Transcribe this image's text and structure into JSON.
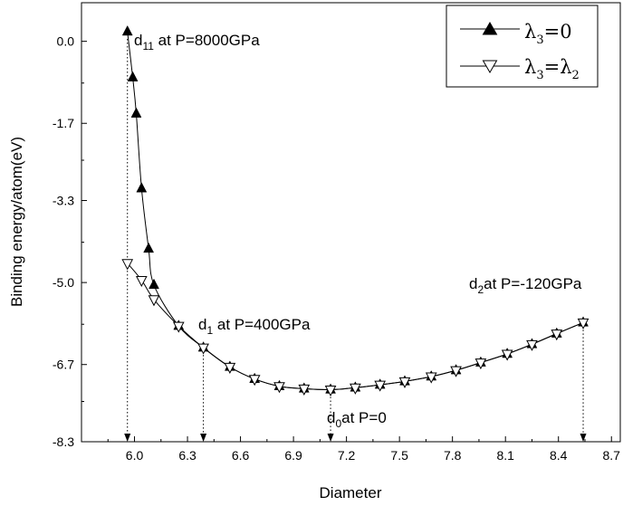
{
  "chart_data": {
    "type": "scatter",
    "xlabel": "Diameter",
    "ylabel": "Binding energy/atom(eV)",
    "xlim": [
      5.7,
      8.75
    ],
    "ylim": [
      -8.3,
      0.8
    ],
    "x_ticks": [
      "6.0",
      "6.3",
      "6.6",
      "6.9",
      "7.2",
      "7.5",
      "7.8",
      "8.1",
      "8.4",
      "8.7"
    ],
    "y_ticks": [
      "0.0",
      "-1.7",
      "-3.3",
      "-5.0",
      "-6.7",
      "-8.3"
    ],
    "grid": false,
    "legend_position": "top-right",
    "series": [
      {
        "name": "λ3=0",
        "marker": "filled-up-triangle",
        "color": "#000000",
        "x": [
          5.96,
          5.99,
          6.01,
          6.04,
          6.08,
          6.11,
          6.25,
          6.39,
          6.54,
          6.68,
          6.82,
          6.96,
          7.11,
          7.25,
          7.39,
          7.53,
          7.68,
          7.82,
          7.96,
          8.11,
          8.25,
          8.39,
          8.54
        ],
        "y": [
          0.2,
          -0.75,
          -1.5,
          -3.05,
          -4.3,
          -5.05,
          -5.9,
          -6.35,
          -6.75,
          -7.0,
          -7.15,
          -7.2,
          -7.22,
          -7.18,
          -7.12,
          -7.05,
          -6.95,
          -6.82,
          -6.66,
          -6.48,
          -6.28,
          -6.06,
          -5.83
        ]
      },
      {
        "name": "λ3=λ2",
        "marker": "open-down-triangle",
        "color": "#000000",
        "x": [
          5.96,
          6.04,
          6.11,
          6.25,
          6.39,
          6.54,
          6.68,
          6.82,
          6.96,
          7.11,
          7.25,
          7.39,
          7.53,
          7.68,
          7.82,
          7.96,
          8.11,
          8.25,
          8.39,
          8.54
        ],
        "y": [
          -4.6,
          -4.95,
          -5.35,
          -5.9,
          -6.35,
          -6.75,
          -7.0,
          -7.15,
          -7.2,
          -7.22,
          -7.18,
          -7.12,
          -7.05,
          -6.95,
          -6.82,
          -6.66,
          -6.48,
          -6.28,
          -6.06,
          -5.83
        ]
      }
    ],
    "annotations": [
      {
        "main": "d",
        "sub": "11",
        "rest": " at P=8000GPa",
        "x": 5.96
      },
      {
        "main": "d",
        "sub": "1",
        "rest": " at P=400GPa",
        "x": 6.39
      },
      {
        "main": "d",
        "sub": "0",
        "rest": "at P=0",
        "x": 7.11
      },
      {
        "main": "d",
        "sub": "2",
        "rest": "at P=-120GPa",
        "x": 8.54
      }
    ]
  }
}
